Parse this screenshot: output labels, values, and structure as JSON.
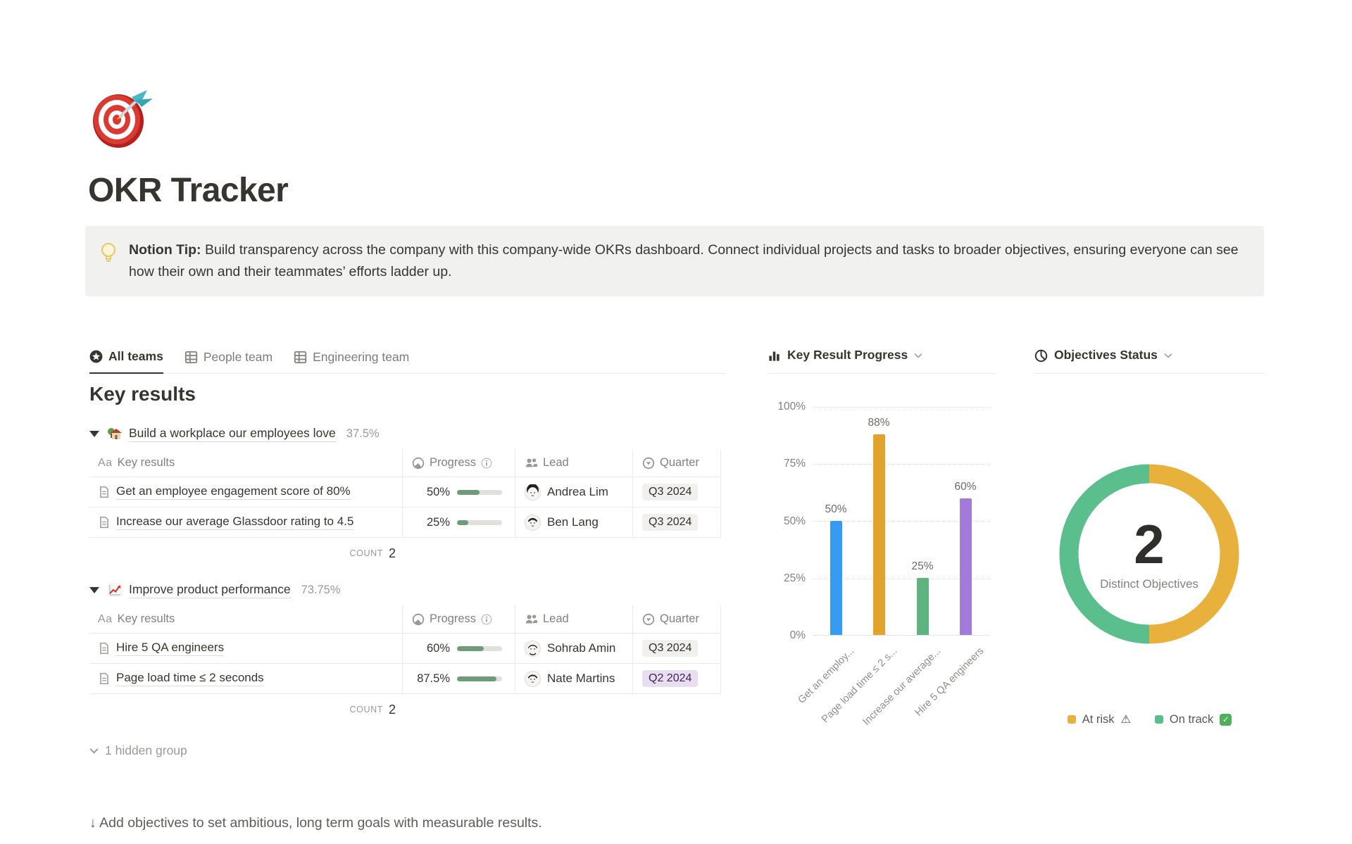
{
  "page": {
    "icon": "dart-target",
    "title": "OKR Tracker",
    "tip": {
      "label": "Notion Tip:",
      "text": " Build transparency across the company with this company-wide OKRs dashboard. Connect individual projects and tasks to broader objectives, ensuring everyone can see how their own and their teammates’ efforts ladder up."
    }
  },
  "tabs": [
    {
      "label": "All teams",
      "icon": "star-circle-icon",
      "active": true
    },
    {
      "label": "People team",
      "icon": "table-icon",
      "active": false
    },
    {
      "label": "Engineering team",
      "icon": "table-icon",
      "active": false
    }
  ],
  "key_results": {
    "heading": "Key results",
    "columns": {
      "name": "Key results",
      "name_icon": "Aa",
      "progress": "Progress",
      "lead": "Lead",
      "quarter": "Quarter"
    },
    "count_label": "COUNT",
    "groups": [
      {
        "emoji": "house-with-garden",
        "title": "Build a workplace our employees love",
        "percent": "37.5%",
        "count": "2",
        "rows": [
          {
            "name": "Get an employee engagement score of 80%",
            "progress": "50%",
            "progress_value": 50,
            "lead": "Andrea Lim",
            "quarter": "Q3 2024",
            "quarter_color": "gray"
          },
          {
            "name": "Increase our average Glassdoor rating to 4.5",
            "progress": "25%",
            "progress_value": 25,
            "lead": "Ben Lang",
            "quarter": "Q3 2024",
            "quarter_color": "gray"
          }
        ]
      },
      {
        "emoji": "chart-increasing",
        "title": "Improve product performance",
        "percent": "73.75%",
        "count": "2",
        "rows": [
          {
            "name": "Hire 5 QA engineers",
            "progress": "60%",
            "progress_value": 60,
            "lead": "Sohrab Amin",
            "quarter": "Q3 2024",
            "quarter_color": "gray"
          },
          {
            "name": "Page load time ≤ 2 seconds",
            "progress": "87.5%",
            "progress_value": 87.5,
            "lead": "Nate Martins",
            "quarter": "Q2 2024",
            "quarter_color": "purple"
          }
        ]
      }
    ],
    "hidden_group": "1 hidden group",
    "footer": "↓ Add objectives to set ambitious, long term goals with measurable results."
  },
  "chart_data": [
    {
      "type": "bar",
      "title": "Key Result Progress",
      "categories": [
        "Get an employ...",
        "Page load time ≤ 2 s...",
        "Increase our average...",
        "Hire 5 QA engineers"
      ],
      "values": [
        50,
        88,
        25,
        60
      ],
      "value_labels": [
        "50%",
        "88%",
        "25%",
        "60%"
      ],
      "colors": [
        "#379BF1",
        "#E2A32D",
        "#5FB37E",
        "#A17BD7"
      ],
      "ylabel_ticks": [
        "100%",
        "75%",
        "50%",
        "25%",
        "0%"
      ],
      "ylim": [
        0,
        100
      ],
      "grid": "dotted-horizontal",
      "legend_position": "none"
    },
    {
      "type": "pie",
      "title": "Objectives Status",
      "center_value": "2",
      "center_label": "Distinct Objectives",
      "slices": [
        {
          "label": "At risk",
          "value": 1,
          "color": "#E7B13B"
        },
        {
          "label": "On track",
          "value": 1,
          "color": "#5BBE8D"
        }
      ],
      "legend": [
        {
          "label": "At risk",
          "suffix_icon": "warning",
          "color": "#E7B13B"
        },
        {
          "label": "On track",
          "suffix_icon": "check",
          "color": "#5BBE8D"
        }
      ],
      "legend_position": "bottom"
    }
  ],
  "theme": {
    "progress_fill": "#6F9B79",
    "badge_gray_bg": "#F1F0EE",
    "badge_purple_bg": "#E8DEF0",
    "accent_text": "#37352F",
    "muted_text": "#9B9A97"
  }
}
